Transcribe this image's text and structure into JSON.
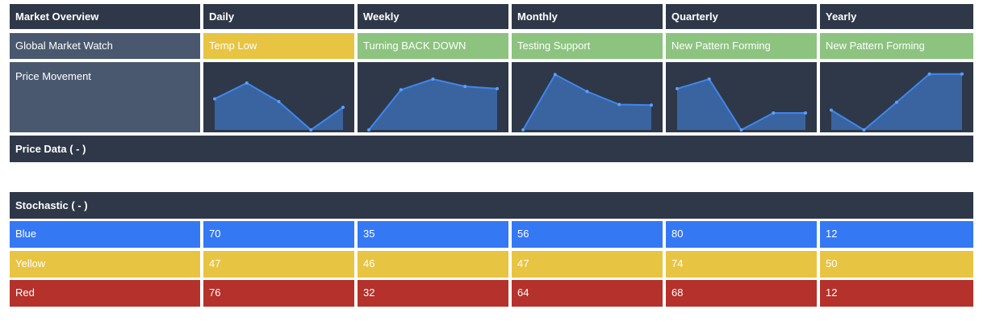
{
  "header": {
    "corner": "Market Overview",
    "periods": [
      "Daily",
      "Weekly",
      "Monthly",
      "Quarterly",
      "Yearly"
    ]
  },
  "status_row": {
    "label": "Global Market Watch",
    "values": [
      {
        "text": "Temp Low",
        "color": "yellow"
      },
      {
        "text": "Turning BACK DOWN",
        "color": "green"
      },
      {
        "text": "Testing Support",
        "color": "green"
      },
      {
        "text": "New Pattern Forming",
        "color": "green"
      },
      {
        "text": "New Pattern Forming",
        "color": "green"
      }
    ]
  },
  "price_movement": {
    "label": "Price Movement",
    "sparklines": [
      [
        0.55,
        0.83,
        0.5,
        0.0,
        0.4
      ],
      [
        0.0,
        0.71,
        0.9,
        0.77,
        0.73
      ],
      [
        0.0,
        0.98,
        0.68,
        0.45,
        0.44
      ],
      [
        0.73,
        0.9,
        0.0,
        0.3,
        0.3
      ],
      [
        0.35,
        0.0,
        0.49,
        0.99,
        0.99
      ]
    ],
    "colors": {
      "fill": "#3a64a0",
      "line": "#3e86ee",
      "dot": "#5aa0ff"
    }
  },
  "price_data": {
    "label": "Price Data ( - )"
  },
  "stochastic": {
    "label": "Stochastic ( - )",
    "rows": [
      {
        "name": "Blue",
        "color": "blue",
        "values": [
          "70",
          "35",
          "56",
          "80",
          "12"
        ]
      },
      {
        "name": "Yellow",
        "color": "yellow",
        "values": [
          "47",
          "46",
          "47",
          "74",
          "50"
        ]
      },
      {
        "name": "Red",
        "color": "red",
        "values": [
          "76",
          "32",
          "64",
          "68",
          "12"
        ]
      }
    ]
  },
  "colors": {
    "header_bg": "#2f3848",
    "label_bg": "#4a586f",
    "blue": "#3478f4",
    "yellow": "#e8c443",
    "green": "#8cc37f",
    "red": "#b5312b"
  }
}
